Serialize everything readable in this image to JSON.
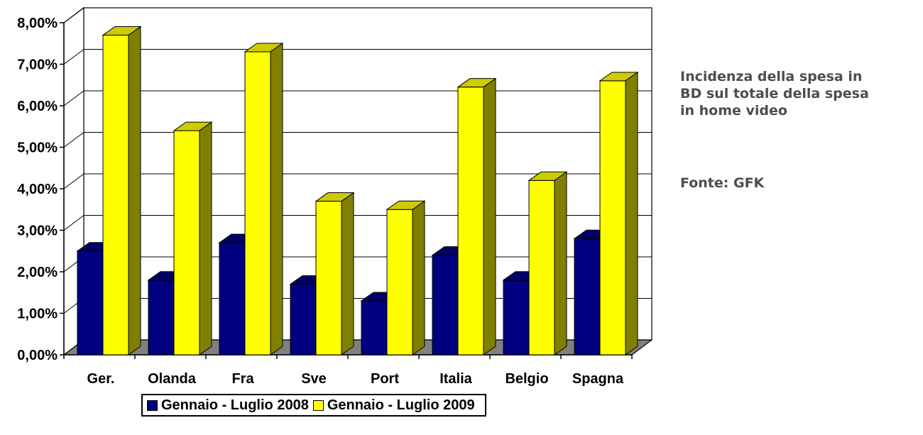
{
  "chart_data": {
    "type": "bar",
    "style": "3d-clustered-column",
    "categories": [
      "Ger.",
      "Olanda",
      "Fra",
      "Sve",
      "Port",
      "Italia",
      "Belgio",
      "Spagna"
    ],
    "series": [
      {
        "name": "Gennaio - Luglio 2008",
        "color": "#000080",
        "values": [
          2.5,
          1.8,
          2.7,
          1.7,
          1.3,
          2.4,
          1.8,
          2.8
        ]
      },
      {
        "name": "Gennaio - Luglio 2009",
        "color": "#ffff00",
        "values": [
          7.7,
          5.4,
          7.3,
          3.7,
          3.5,
          6.45,
          4.2,
          6.6
        ]
      }
    ],
    "ylim": [
      0,
      8
    ],
    "yticks": [
      "0,00%",
      "1,00%",
      "2,00%",
      "3,00%",
      "4,00%",
      "5,00%",
      "6,00%",
      "7,00%",
      "8,00%"
    ],
    "y_tick_values": [
      0,
      1,
      2,
      3,
      4,
      5,
      6,
      7,
      8
    ],
    "grid": true,
    "legend_position": "bottom"
  },
  "annotation": {
    "title": "Incidenza della spesa in\nBD sul totale della spesa\nin home video",
    "source": "Fonte: GFK"
  }
}
